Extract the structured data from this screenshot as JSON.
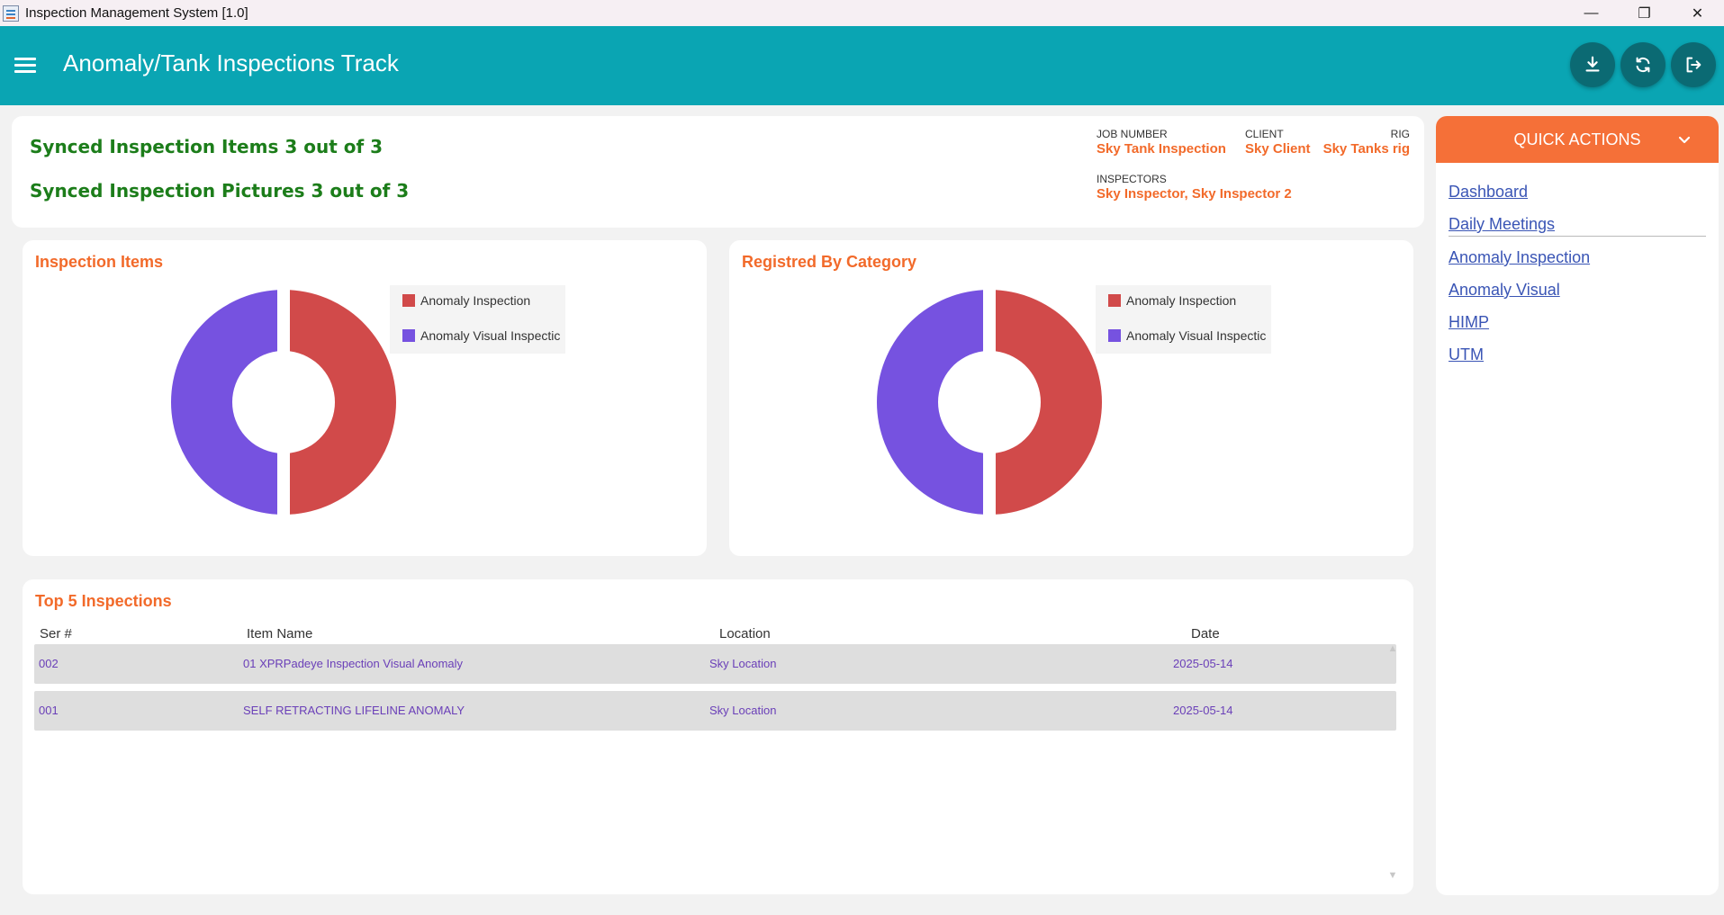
{
  "window": {
    "title": "Inspection Management System [1.0]",
    "minimize_glyph": "—",
    "restore_glyph": "❐",
    "close_glyph": "✕"
  },
  "header": {
    "title": "Anomaly/Tank Inspections Track",
    "actions": [
      "download-icon",
      "sync-icon",
      "logout-icon"
    ]
  },
  "sync": {
    "items": "Synced Inspection Items 3 out of 3",
    "pictures": "Synced Inspection Pictures 3 out of 3"
  },
  "job": {
    "job_number_label": "JOB NUMBER",
    "job_number": "Sky Tank Inspection",
    "client_label": "CLIENT",
    "client": "Sky Client",
    "rig_label": "RIG",
    "rig": "Sky Tanks rig",
    "inspectors_label": "INSPECTORS",
    "inspectors": "Sky Inspector, Sky Inspector 2"
  },
  "colors": {
    "header": "#0aa5b3",
    "accent": "#f26a2a",
    "success": "#1c7d1a",
    "series_red": "#d14a4a",
    "series_purple": "#7652e0"
  },
  "chart_data": [
    {
      "type": "pie",
      "title": "Inspection Items",
      "categories": [
        "Anomaly Inspection",
        "Anomaly Visual Inspectic"
      ],
      "values": [
        1,
        1
      ],
      "colors": [
        "#d14a4a",
        "#7652e0"
      ],
      "legend": "top-right"
    },
    {
      "type": "pie",
      "title": "Registred By Category",
      "categories": [
        "Anomaly Inspection",
        "Anomaly Visual Inspectic"
      ],
      "values": [
        1,
        1
      ],
      "colors": [
        "#d14a4a",
        "#7652e0"
      ],
      "legend": "top-right"
    }
  ],
  "top5": {
    "title": "Top 5 Inspections",
    "columns": [
      "Ser #",
      "Item Name",
      "Location",
      "Date"
    ],
    "rows": [
      [
        "002",
        "01 XPRPadeye Inspection Visual Anomaly",
        "Sky Location",
        "2025-05-14"
      ],
      [
        "001",
        "SELF RETRACTING LIFELINE ANOMALY",
        "Sky Location",
        "2025-05-14"
      ]
    ]
  },
  "quick_actions": {
    "title": "QUICK ACTIONS",
    "links": [
      "Dashboard",
      "Daily Meetings",
      "Anomaly Inspection",
      "Anomaly Visual",
      "HIMP",
      "UTM"
    ]
  }
}
